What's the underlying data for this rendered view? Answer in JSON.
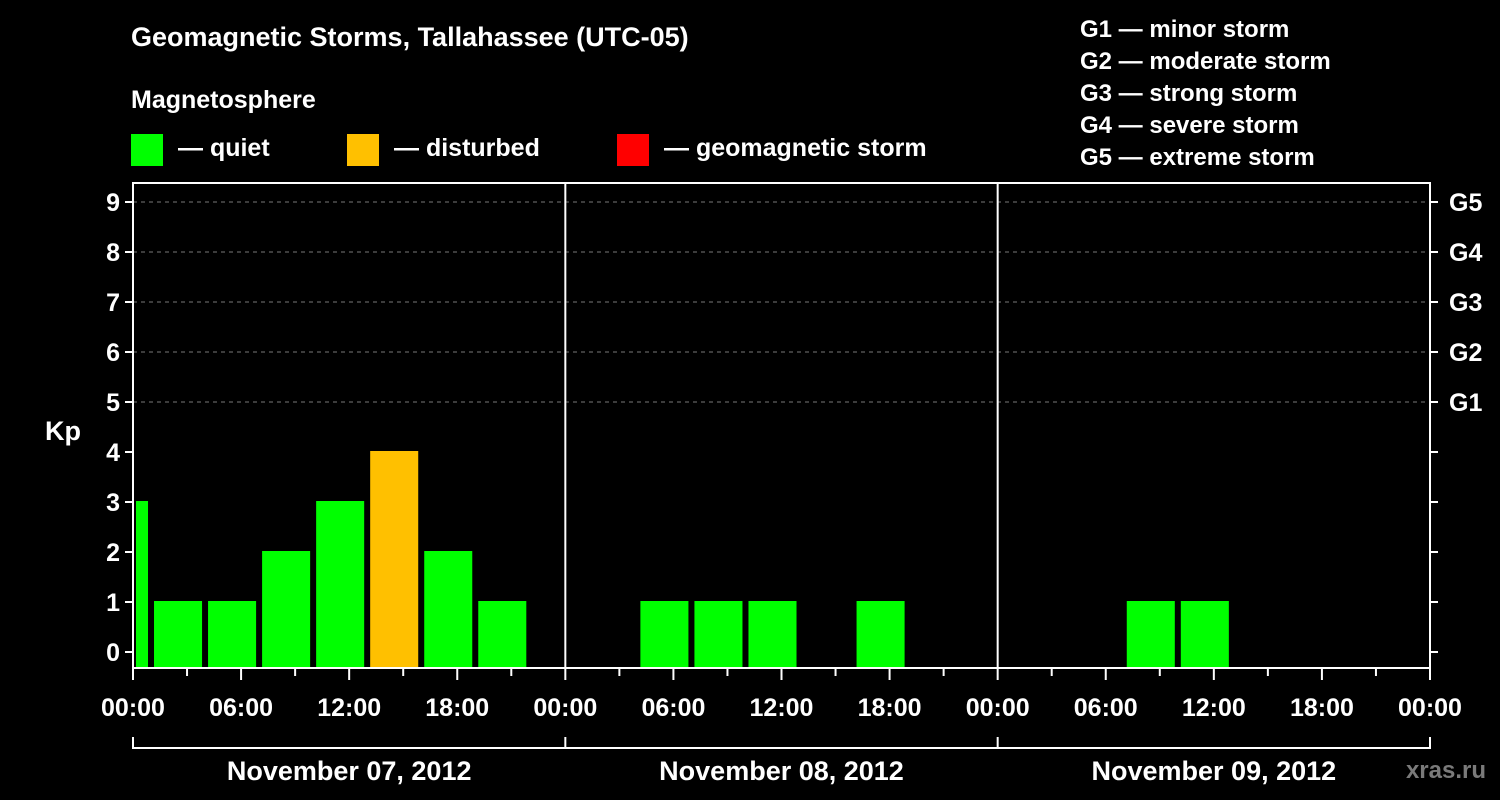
{
  "header": {
    "title": "Geomagnetic Storms, Tallahassee (UTC-05)",
    "subtitle": "Magnetosphere"
  },
  "legend": [
    {
      "label": "— quiet",
      "color": "#00ff00"
    },
    {
      "label": "— disturbed",
      "color": "#ffc000"
    },
    {
      "label": "— geomagnetic storm",
      "color": "#ff0000"
    }
  ],
  "storm_levels": [
    "G1 — minor storm",
    "G2 — moderate storm",
    "G3 — strong storm",
    "G4 — severe storm",
    "G5 — extreme storm"
  ],
  "watermark": "xras.ru",
  "chart_data": {
    "type": "bar",
    "title": "Geomagnetic Storms, Tallahassee (UTC-05)",
    "ylabel": "Kp",
    "ylim": [
      0,
      9
    ],
    "yticks": [
      0,
      1,
      2,
      3,
      4,
      5,
      6,
      7,
      8,
      9
    ],
    "right_axis": [
      {
        "kp": 5,
        "label": "G1"
      },
      {
        "kp": 6,
        "label": "G2"
      },
      {
        "kp": 7,
        "label": "G3"
      },
      {
        "kp": 8,
        "label": "G4"
      },
      {
        "kp": 9,
        "label": "G5"
      }
    ],
    "x_hours_range": [
      0,
      72
    ],
    "xticks": [
      {
        "hour": 0,
        "label": "00:00"
      },
      {
        "hour": 6,
        "label": "06:00"
      },
      {
        "hour": 12,
        "label": "12:00"
      },
      {
        "hour": 18,
        "label": "18:00"
      },
      {
        "hour": 24,
        "label": "00:00"
      },
      {
        "hour": 30,
        "label": "06:00"
      },
      {
        "hour": 36,
        "label": "12:00"
      },
      {
        "hour": 42,
        "label": "18:00"
      },
      {
        "hour": 48,
        "label": "00:00"
      },
      {
        "hour": 54,
        "label": "06:00"
      },
      {
        "hour": 60,
        "label": "12:00"
      },
      {
        "hour": 66,
        "label": "18:00"
      },
      {
        "hour": 72,
        "label": "00:00"
      }
    ],
    "days": [
      {
        "label": "November 07, 2012",
        "start_hour": 0,
        "end_hour": 24
      },
      {
        "label": "November 08, 2012",
        "start_hour": 24,
        "end_hour": 48
      },
      {
        "label": "November 09, 2012",
        "start_hour": 48,
        "end_hour": 72
      }
    ],
    "bars": [
      {
        "start_hour": 0,
        "end_hour": 1,
        "kp": 3,
        "status": "quiet"
      },
      {
        "start_hour": 1,
        "end_hour": 4,
        "kp": 1,
        "status": "quiet"
      },
      {
        "start_hour": 4,
        "end_hour": 7,
        "kp": 1,
        "status": "quiet"
      },
      {
        "start_hour": 7,
        "end_hour": 10,
        "kp": 2,
        "status": "quiet"
      },
      {
        "start_hour": 10,
        "end_hour": 13,
        "kp": 3,
        "status": "quiet"
      },
      {
        "start_hour": 13,
        "end_hour": 16,
        "kp": 4,
        "status": "disturbed"
      },
      {
        "start_hour": 16,
        "end_hour": 19,
        "kp": 2,
        "status": "quiet"
      },
      {
        "start_hour": 19,
        "end_hour": 22,
        "kp": 1,
        "status": "quiet"
      },
      {
        "start_hour": 28,
        "end_hour": 31,
        "kp": 1,
        "status": "quiet"
      },
      {
        "start_hour": 31,
        "end_hour": 34,
        "kp": 1,
        "status": "quiet"
      },
      {
        "start_hour": 34,
        "end_hour": 37,
        "kp": 1,
        "status": "quiet"
      },
      {
        "start_hour": 40,
        "end_hour": 43,
        "kp": 1,
        "status": "quiet"
      },
      {
        "start_hour": 55,
        "end_hour": 58,
        "kp": 1,
        "status": "quiet"
      },
      {
        "start_hour": 58,
        "end_hour": 61,
        "kp": 1,
        "status": "quiet"
      }
    ],
    "status_colors": {
      "quiet": "#00ff00",
      "disturbed": "#ffc000",
      "storm": "#ff0000"
    }
  }
}
